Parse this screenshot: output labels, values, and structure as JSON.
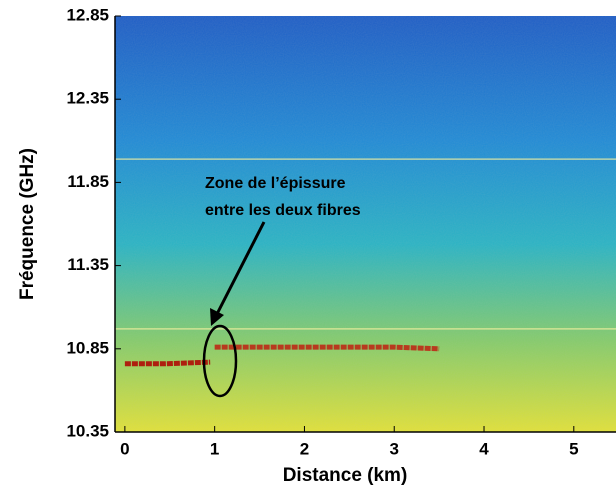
{
  "chart_data": {
    "type": "heatmap",
    "xlabel": "Distance (km)",
    "ylabel": "Fréquence (GHz)",
    "annotation": [
      "Zone de l’épissure",
      "entre les deux fibres"
    ],
    "x": [
      0,
      0.45,
      0.95,
      1.0,
      2.0,
      3.0,
      3.5
    ],
    "series": [
      {
        "color": "#b00000",
        "values": [
          10.76,
          10.76,
          10.77,
          null,
          null,
          null,
          null
        ]
      },
      {
        "color": "#c02010",
        "values": [
          null,
          null,
          null,
          10.86,
          10.86,
          10.86,
          10.85
        ]
      }
    ],
    "hlines": [
      11.99,
      10.97
    ],
    "hline_color": "#f4f0a0",
    "xlim": [
      -0.11,
      5.47
    ],
    "xticks": [
      0,
      1,
      2,
      3,
      4,
      5
    ],
    "ylim": [
      10.35,
      12.85
    ],
    "yticks": [
      10.35,
      10.85,
      11.35,
      11.85,
      12.35,
      12.85
    ]
  }
}
